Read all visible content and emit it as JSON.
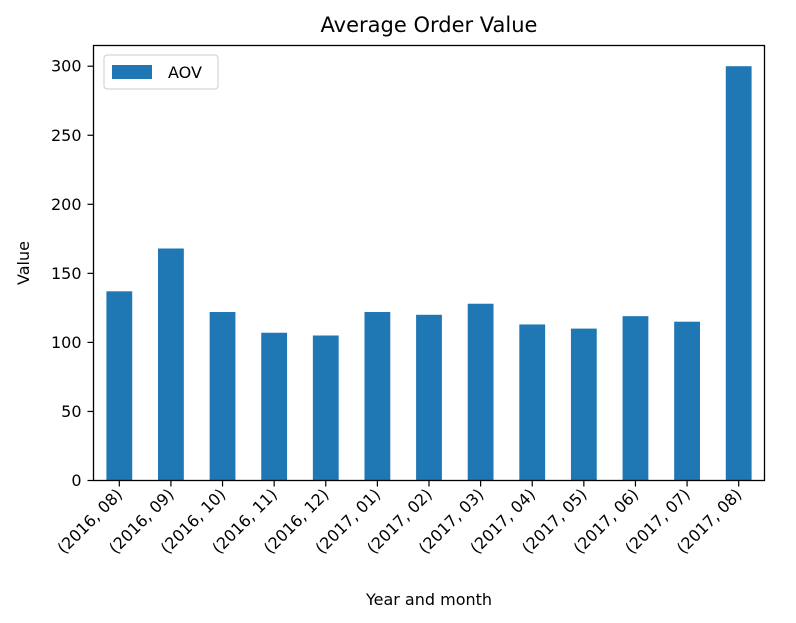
{
  "chart_data": {
    "type": "bar",
    "title": "Average Order Value",
    "xlabel": "Year and month",
    "ylabel": "Value",
    "categories": [
      "(2016, 08)",
      "(2016, 09)",
      "(2016, 10)",
      "(2016, 11)",
      "(2016, 12)",
      "(2017, 01)",
      "(2017, 02)",
      "(2017, 03)",
      "(2017, 04)",
      "(2017, 05)",
      "(2017, 06)",
      "(2017, 07)",
      "(2017, 08)"
    ],
    "series": [
      {
        "name": "AOV",
        "color": "#1f77b4",
        "values": [
          137,
          168,
          122,
          107,
          105,
          122,
          120,
          128,
          113,
          110,
          119,
          115,
          300
        ]
      }
    ],
    "ylim": [
      0,
      315
    ],
    "yticks": [
      0,
      50,
      100,
      150,
      200,
      250,
      300
    ],
    "grid": false,
    "legend": "top-left"
  }
}
